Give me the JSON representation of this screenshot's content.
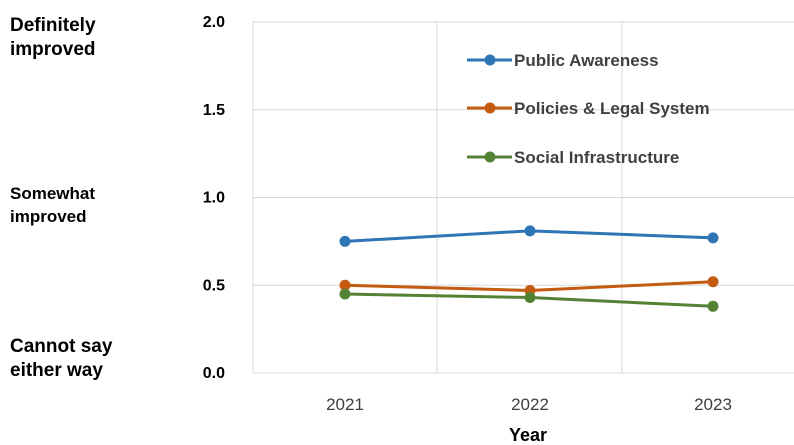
{
  "side_labels": {
    "top": "Definitely\nimproved",
    "middle": "Somewhat\nimproved",
    "bottom": "Cannot say\neither way"
  },
  "chart_data": {
    "type": "line",
    "title": "",
    "xlabel": "Year",
    "ylabel": "",
    "categories": [
      "2021",
      "2022",
      "2023"
    ],
    "ylim": [
      0,
      2.0
    ],
    "yticks": [
      "0.0",
      "0.5",
      "1.0",
      "1.5",
      "2.0"
    ],
    "grid": true,
    "legend_position": "top-right",
    "series": [
      {
        "name": "Public Awareness",
        "values": [
          0.75,
          0.81,
          0.77
        ],
        "color": "#2E75B6"
      },
      {
        "name": "Policies & Legal System",
        "values": [
          0.5,
          0.47,
          0.52
        ],
        "color": "#C55A11"
      },
      {
        "name": "Social Infrastructure",
        "values": [
          0.45,
          0.43,
          0.38
        ],
        "color": "#548235"
      }
    ]
  }
}
